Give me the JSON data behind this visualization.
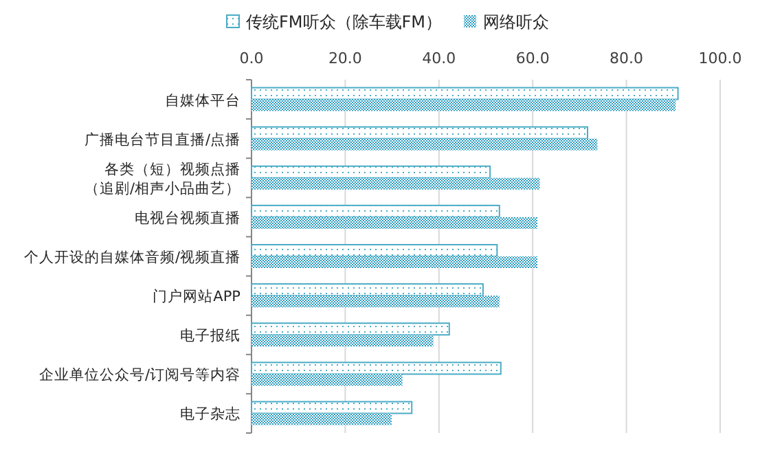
{
  "chart_data": {
    "type": "bar",
    "orientation": "horizontal",
    "categories": [
      "自媒体平台",
      "广播电台节目直播/点播",
      "各类（短）视频点播（追剧/相声小品曲艺）",
      "电视台视频直播",
      "个人开设的自媒体音频/视频直播",
      "门户网站APP",
      "电子报纸",
      "企业单位公众号/订阅号等内容",
      "电子杂志"
    ],
    "series": [
      {
        "name": "传统FM听众（除车载FM）",
        "color": "#4bacc6",
        "values": [
          91.0,
          71.7,
          50.9,
          52.9,
          52.4,
          49.4,
          42.2,
          53.2,
          34.2
        ]
      },
      {
        "name": "网络听众",
        "color": "#2b9cc0",
        "values": [
          90.5,
          73.8,
          61.5,
          61.0,
          61.0,
          52.9,
          38.8,
          32.2,
          29.9
        ]
      }
    ],
    "xlim": [
      0,
      100
    ],
    "xticks": [
      {
        "value": 0,
        "label": "0.0"
      },
      {
        "value": 20,
        "label": "20.0"
      },
      {
        "value": 40,
        "label": "40.0"
      },
      {
        "value": 60,
        "label": "60.0"
      },
      {
        "value": 80,
        "label": "80.0"
      },
      {
        "value": 100,
        "label": "100.0"
      }
    ],
    "grid": "x",
    "legend": "top"
  }
}
